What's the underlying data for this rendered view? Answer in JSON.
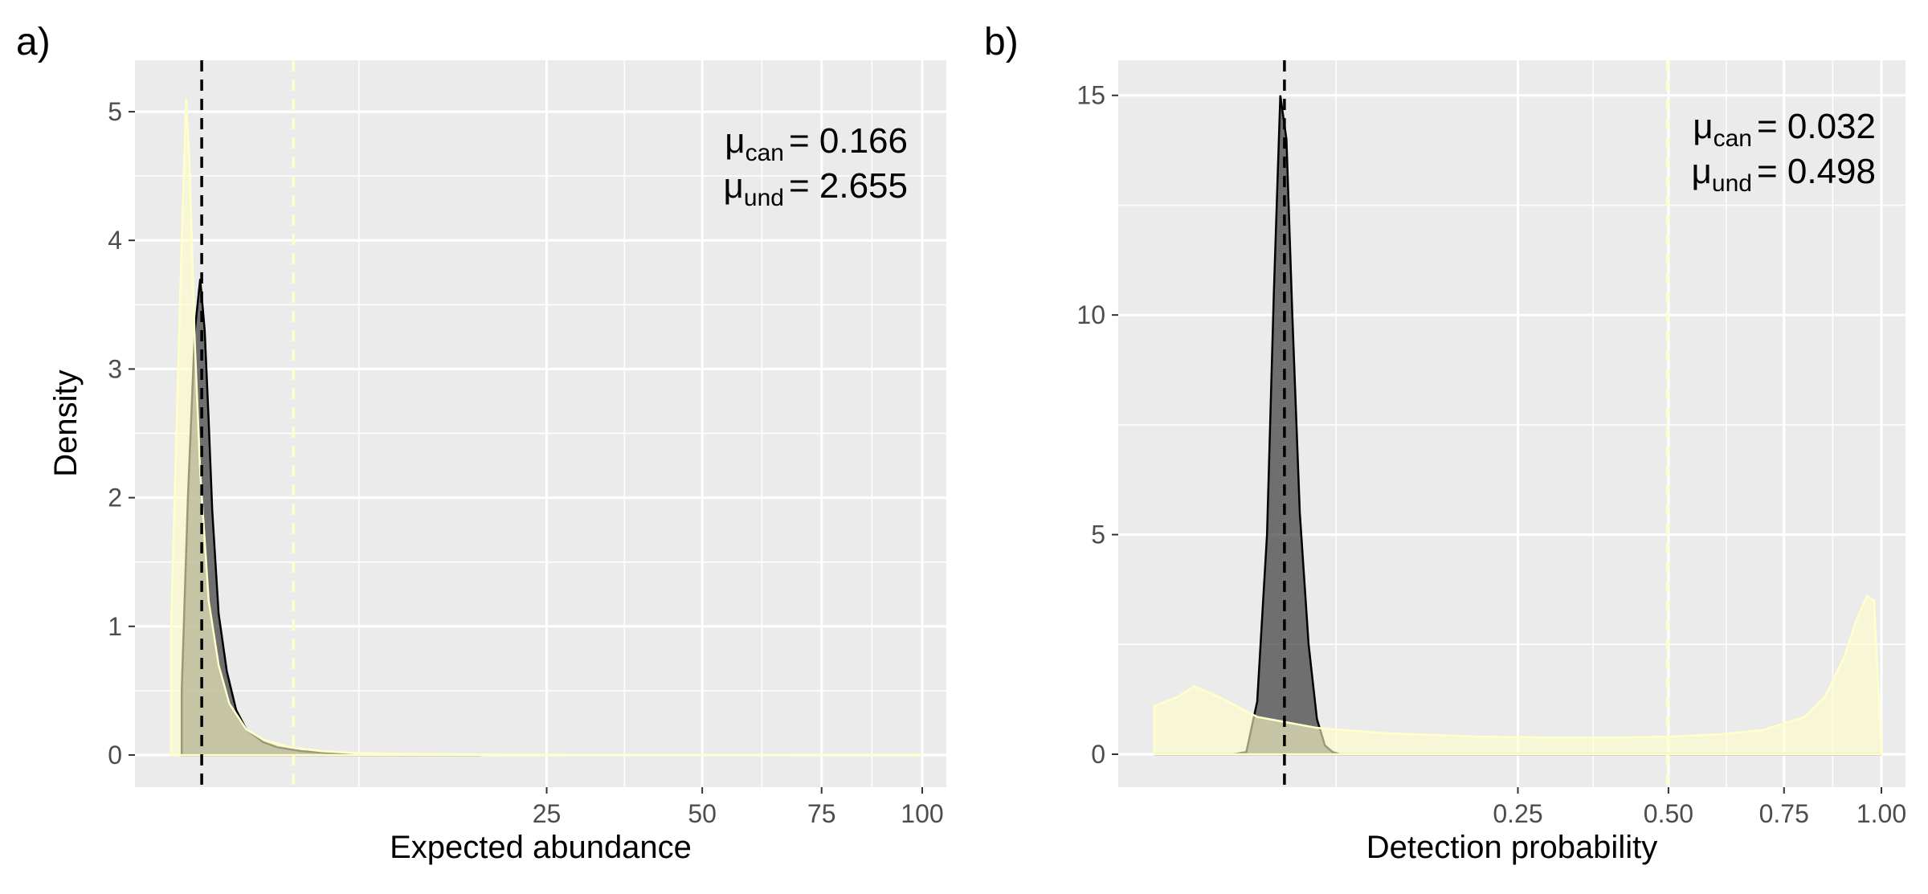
{
  "chart_data": [
    {
      "panel_label": "a)",
      "type": "area",
      "xlabel": "Expected abundance",
      "ylabel": "Density",
      "x_scale": "sqrt",
      "xlim": [
        0,
        100
      ],
      "ylim": [
        -0.25,
        5.4
      ],
      "x_ticks": [
        25,
        50,
        75,
        100
      ],
      "x_tick_labels": [
        "25",
        "50",
        "75",
        "100"
      ],
      "y_ticks": [
        0,
        1,
        2,
        3,
        4,
        5
      ],
      "y_tick_labels": [
        "0",
        "1",
        "2",
        "3",
        "4",
        "5"
      ],
      "grid": true,
      "annotations": [
        {
          "symbol": "μ",
          "subscript": "can",
          "text": "= 0.166"
        },
        {
          "symbol": "μ",
          "subscript": "und",
          "text": "= 2.655"
        }
      ],
      "series": [
        {
          "fill": "#3a3a3a",
          "x": [
            0.02,
            0.05,
            0.1,
            0.15,
            0.2,
            0.25,
            0.3,
            0.4,
            0.55,
            0.75,
            1.0,
            1.5,
            2.0,
            3.0,
            5.0,
            8.0,
            13.0,
            17.0
          ],
          "y": [
            0.5,
            2.0,
            3.3,
            3.7,
            3.3,
            2.6,
            1.9,
            1.1,
            0.65,
            0.35,
            0.2,
            0.1,
            0.06,
            0.03,
            0.01,
            0.005,
            0.002,
            0.0
          ]
        },
        {
          "fill": "#ffffcc",
          "x": [
            0.0,
            0.02,
            0.04,
            0.06,
            0.1,
            0.15,
            0.25,
            0.4,
            0.6,
            1.0,
            1.5,
            2.5,
            4.0,
            6.0,
            10.0,
            20.0,
            40.0,
            70.0,
            100.0
          ],
          "y": [
            1.0,
            4.0,
            5.1,
            4.6,
            3.2,
            2.2,
            1.2,
            0.7,
            0.4,
            0.2,
            0.12,
            0.06,
            0.03,
            0.015,
            0.008,
            0.003,
            0.001,
            0.0,
            0.0
          ]
        }
      ],
      "vlines": [
        {
          "x": 0.166,
          "color": "#000000"
        },
        {
          "x": 2.655,
          "color": "#ffffcc"
        }
      ]
    },
    {
      "panel_label": "b)",
      "type": "area",
      "xlabel": "Detection probability",
      "ylabel": "",
      "x_scale": "sqrt",
      "xlim": [
        0,
        1
      ],
      "ylim": [
        -0.75,
        15.8
      ],
      "x_ticks": [
        0.25,
        0.5,
        0.75,
        1.0
      ],
      "x_tick_labels": [
        "0.25",
        "0.50",
        "0.75",
        "1.00"
      ],
      "y_ticks": [
        0,
        5,
        10,
        15
      ],
      "y_tick_labels": [
        "0",
        "5",
        "10",
        "15"
      ],
      "grid": true,
      "annotations": [
        {
          "symbol": "μ",
          "subscript": "can",
          "text": "= 0.032"
        },
        {
          "symbol": "μ",
          "subscript": "und",
          "text": "= 0.498"
        }
      ],
      "series": [
        {
          "fill": "#3a3a3a",
          "x": [
            0.0,
            0.012,
            0.016,
            0.02,
            0.024,
            0.027,
            0.03,
            0.033,
            0.036,
            0.04,
            0.045,
            0.05,
            0.055,
            0.06,
            0.065,
            0.07,
            1.0
          ],
          "y": [
            0.0,
            0.0,
            0.05,
            1.2,
            5.0,
            10.5,
            15.0,
            14.0,
            10.0,
            5.5,
            2.5,
            0.8,
            0.2,
            0.05,
            0.0,
            0.0,
            0.0
          ]
        },
        {
          "fill": "#ffffcc",
          "x": [
            0.0,
            0.001,
            0.003,
            0.008,
            0.02,
            0.05,
            0.1,
            0.2,
            0.3,
            0.4,
            0.5,
            0.6,
            0.7,
            0.8,
            0.85,
            0.9,
            0.93,
            0.96,
            0.98,
            1.0
          ],
          "y": [
            1.1,
            1.3,
            1.55,
            1.3,
            0.85,
            0.6,
            0.48,
            0.4,
            0.38,
            0.38,
            0.4,
            0.45,
            0.55,
            0.85,
            1.3,
            2.2,
            3.0,
            3.6,
            3.5,
            0.0
          ]
        }
      ],
      "vlines": [
        {
          "x": 0.032,
          "color": "#000000"
        },
        {
          "x": 0.498,
          "color": "#ffffcc"
        }
      ]
    }
  ]
}
